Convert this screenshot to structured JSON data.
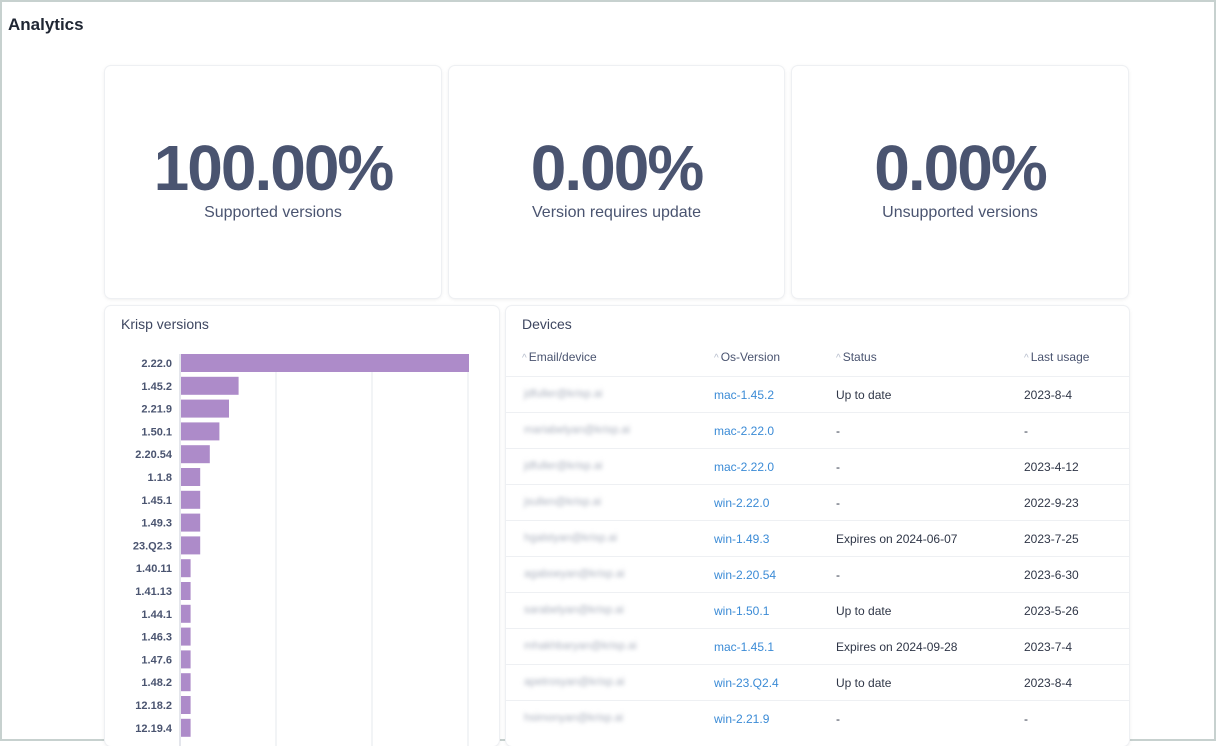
{
  "page": {
    "title": "Analytics"
  },
  "stats": [
    {
      "value": "100.00%",
      "label": "Supported versions"
    },
    {
      "value": "0.00%",
      "label": "Version requires update"
    },
    {
      "value": "0.00%",
      "label": "Unsupported versions"
    }
  ],
  "versions_panel": {
    "title": "Krisp versions"
  },
  "chart_data": {
    "type": "bar",
    "orientation": "horizontal",
    "categories": [
      "2.22.0",
      "1.45.2",
      "2.21.9",
      "1.50.1",
      "2.20.54",
      "1.1.8",
      "1.45.1",
      "1.49.3",
      "23.Q2.3",
      "1.40.11",
      "1.41.13",
      "1.44.1",
      "1.46.3",
      "1.47.6",
      "1.48.2",
      "12.18.2",
      "12.19.4"
    ],
    "values": [
      15,
      3,
      2.5,
      2,
      1.5,
      1,
      1,
      1,
      1,
      0.5,
      0.5,
      0.5,
      0.5,
      0.5,
      0.5,
      0.5,
      0.5
    ],
    "xlim": [
      0,
      15
    ],
    "grid": true,
    "bar_color": "#ad8bc9"
  },
  "devices_panel": {
    "title": "Devices",
    "columns": [
      "Email/device",
      "Os-Version",
      "Status",
      "Last usage"
    ],
    "rows": [
      {
        "email": "jdfuller@krisp.ai",
        "os": "mac-1.45.2",
        "status": "Up to date",
        "usage": "2023-8-4"
      },
      {
        "email": "mariabelyan@krisp.ai",
        "os": "mac-2.22.0",
        "status": "-",
        "usage": "-"
      },
      {
        "email": "jdfuller@krisp.ai",
        "os": "mac-2.22.0",
        "status": "-",
        "usage": "2023-4-12"
      },
      {
        "email": "jsullen@krisp.ai",
        "os": "win-2.22.0",
        "status": "-",
        "usage": "2022-9-23"
      },
      {
        "email": "hgalstyan@krisp.ai",
        "os": "win-1.49.3",
        "status": "Expires on 2024-06-07",
        "usage": "2023-7-25"
      },
      {
        "email": "agaboeyan@krisp.ai",
        "os": "win-2.20.54",
        "status": "-",
        "usage": "2023-6-30"
      },
      {
        "email": "sarabelyan@krisp.ai",
        "os": "win-1.50.1",
        "status": "Up to date",
        "usage": "2023-5-26"
      },
      {
        "email": "mhakhbaryan@krisp.ai",
        "os": "mac-1.45.1",
        "status": "Expires on 2024-09-28",
        "usage": "2023-7-4"
      },
      {
        "email": "apetrosyan@krisp.ai",
        "os": "win-23.Q2.4",
        "status": "Up to date",
        "usage": "2023-8-4"
      },
      {
        "email": "hsimonyan@krisp.ai",
        "os": "win-2.21.9",
        "status": "-",
        "usage": "-"
      }
    ]
  }
}
